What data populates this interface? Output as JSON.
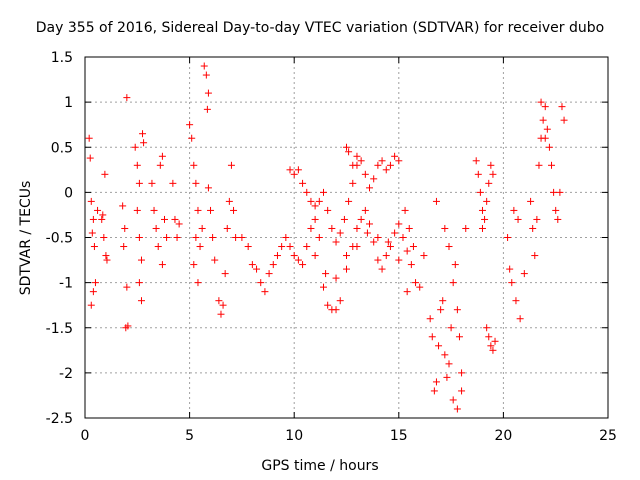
{
  "chart_data": {
    "type": "scatter",
    "title": "Day 355 of 2016, Sidereal Day-to-day VTEC variation (SDTVAR) for receiver dubo",
    "xlabel": "GPS time / hours",
    "ylabel": "SDTVAR / TECUs",
    "xlim": [
      0,
      25
    ],
    "ylim": [
      -2.5,
      1.5
    ],
    "xticks": [
      "0",
      "5",
      "10",
      "15",
      "20",
      "25"
    ],
    "yticks": [
      "1.5",
      "1",
      "0.5",
      "0",
      "-0.5",
      "-1",
      "-1.5",
      "-2",
      "-2.5"
    ],
    "grid": true,
    "marker": "+",
    "color": "#ff0000",
    "series": [
      {
        "name": "SDTVAR",
        "points": [
          [
            0.2,
            0.6
          ],
          [
            0.25,
            0.38
          ],
          [
            0.3,
            -0.1
          ],
          [
            0.35,
            -0.45
          ],
          [
            0.4,
            -0.3
          ],
          [
            0.45,
            -0.6
          ],
          [
            0.3,
            -1.25
          ],
          [
            0.4,
            -1.1
          ],
          [
            0.5,
            -1.0
          ],
          [
            0.6,
            -0.2
          ],
          [
            0.8,
            -0.3
          ],
          [
            0.9,
            -0.5
          ],
          [
            1.0,
            -0.7
          ],
          [
            0.85,
            -0.25
          ],
          [
            0.95,
            0.2
          ],
          [
            1.05,
            -0.75
          ],
          [
            1.8,
            -0.15
          ],
          [
            1.9,
            -0.4
          ],
          [
            1.85,
            -0.6
          ],
          [
            2.0,
            -1.05
          ],
          [
            1.95,
            -1.5
          ],
          [
            2.05,
            -1.48
          ],
          [
            2.0,
            1.05
          ],
          [
            2.4,
            0.5
          ],
          [
            2.5,
            0.3
          ],
          [
            2.6,
            0.1
          ],
          [
            2.5,
            -0.2
          ],
          [
            2.6,
            -0.5
          ],
          [
            2.7,
            -0.75
          ],
          [
            2.6,
            -1.0
          ],
          [
            2.7,
            -1.2
          ],
          [
            2.75,
            0.65
          ],
          [
            2.8,
            0.55
          ],
          [
            3.2,
            0.1
          ],
          [
            3.3,
            -0.2
          ],
          [
            3.4,
            -0.4
          ],
          [
            3.5,
            -0.6
          ],
          [
            3.6,
            0.3
          ],
          [
            3.7,
            0.4
          ],
          [
            3.8,
            -0.3
          ],
          [
            3.9,
            -0.5
          ],
          [
            3.7,
            -0.8
          ],
          [
            4.2,
            0.1
          ],
          [
            4.3,
            -0.3
          ],
          [
            4.4,
            -0.5
          ],
          [
            4.5,
            -0.35
          ],
          [
            5.0,
            0.75
          ],
          [
            5.1,
            0.6
          ],
          [
            5.2,
            0.3
          ],
          [
            5.3,
            0.1
          ],
          [
            5.4,
            -0.2
          ],
          [
            5.3,
            -0.5
          ],
          [
            5.2,
            -0.8
          ],
          [
            5.4,
            -1.0
          ],
          [
            5.5,
            -0.6
          ],
          [
            5.6,
            -0.4
          ],
          [
            5.7,
            1.4
          ],
          [
            5.8,
            1.3
          ],
          [
            5.9,
            1.1
          ],
          [
            5.85,
            0.92
          ],
          [
            5.9,
            0.05
          ],
          [
            6.0,
            -0.2
          ],
          [
            6.1,
            -0.5
          ],
          [
            6.2,
            -0.75
          ],
          [
            6.4,
            -1.2
          ],
          [
            6.5,
            -1.35
          ],
          [
            6.6,
            -1.25
          ],
          [
            6.7,
            -0.9
          ],
          [
            6.8,
            -0.4
          ],
          [
            6.9,
            -0.1
          ],
          [
            7.0,
            0.3
          ],
          [
            7.1,
            -0.2
          ],
          [
            7.2,
            -0.5
          ],
          [
            7.5,
            -0.5
          ],
          [
            7.8,
            -0.6
          ],
          [
            8.0,
            -0.8
          ],
          [
            8.2,
            -0.85
          ],
          [
            8.4,
            -1.0
          ],
          [
            8.6,
            -1.1
          ],
          [
            8.8,
            -0.9
          ],
          [
            9.0,
            -0.8
          ],
          [
            9.2,
            -0.7
          ],
          [
            9.4,
            -0.6
          ],
          [
            9.6,
            -0.5
          ],
          [
            9.8,
            -0.6
          ],
          [
            10.0,
            -0.7
          ],
          [
            10.2,
            -0.75
          ],
          [
            10.4,
            -0.8
          ],
          [
            10.6,
            -0.6
          ],
          [
            10.8,
            -0.4
          ],
          [
            11.0,
            -0.3
          ],
          [
            11.2,
            -0.5
          ],
          [
            11.4,
            -1.05
          ],
          [
            11.6,
            -1.25
          ],
          [
            11.8,
            -1.3
          ],
          [
            12.0,
            -1.3
          ],
          [
            12.2,
            -1.2
          ],
          [
            9.8,
            0.25
          ],
          [
            10.0,
            0.2
          ],
          [
            10.2,
            0.25
          ],
          [
            10.4,
            0.1
          ],
          [
            10.6,
            0.0
          ],
          [
            10.8,
            -0.1
          ],
          [
            11.0,
            -0.15
          ],
          [
            11.2,
            -0.1
          ],
          [
            11.4,
            0.0
          ],
          [
            11.6,
            -0.2
          ],
          [
            11.8,
            -0.4
          ],
          [
            12.0,
            -0.55
          ],
          [
            12.2,
            -0.45
          ],
          [
            12.4,
            -0.3
          ],
          [
            12.6,
            -0.1
          ],
          [
            12.8,
            0.1
          ],
          [
            13.0,
            0.3
          ],
          [
            12.5,
            0.5
          ],
          [
            12.6,
            0.45
          ],
          [
            12.8,
            0.3
          ],
          [
            13.0,
            0.4
          ],
          [
            13.2,
            0.35
          ],
          [
            13.4,
            0.2
          ],
          [
            13.6,
            0.05
          ],
          [
            13.8,
            0.15
          ],
          [
            14.0,
            0.3
          ],
          [
            14.2,
            0.35
          ],
          [
            14.4,
            0.25
          ],
          [
            14.6,
            0.3
          ],
          [
            14.8,
            0.4
          ],
          [
            15.0,
            0.35
          ],
          [
            12.5,
            -0.7
          ],
          [
            12.8,
            -0.6
          ],
          [
            13.0,
            -0.4
          ],
          [
            13.2,
            -0.3
          ],
          [
            13.4,
            -0.2
          ],
          [
            13.6,
            -0.35
          ],
          [
            13.8,
            -0.55
          ],
          [
            14.0,
            -0.75
          ],
          [
            14.2,
            -0.85
          ],
          [
            14.4,
            -0.7
          ],
          [
            14.6,
            -0.6
          ],
          [
            14.8,
            -0.45
          ],
          [
            15.0,
            -0.35
          ],
          [
            15.2,
            -0.5
          ],
          [
            15.4,
            -0.65
          ],
          [
            11.0,
            -0.7
          ],
          [
            11.5,
            -0.9
          ],
          [
            12.0,
            -0.95
          ],
          [
            12.5,
            -0.85
          ],
          [
            13.0,
            -0.6
          ],
          [
            13.5,
            -0.45
          ],
          [
            14.0,
            -0.5
          ],
          [
            14.5,
            -0.55
          ],
          [
            15.0,
            -0.75
          ],
          [
            15.3,
            -0.2
          ],
          [
            15.5,
            -0.4
          ],
          [
            15.6,
            -0.8
          ],
          [
            15.8,
            -1.0
          ],
          [
            16.0,
            -1.05
          ],
          [
            16.2,
            -0.7
          ],
          [
            15.4,
            -1.1
          ],
          [
            15.7,
            -0.6
          ],
          [
            16.5,
            -1.4
          ],
          [
            16.6,
            -1.6
          ],
          [
            16.7,
            -2.2
          ],
          [
            16.8,
            -2.1
          ],
          [
            16.9,
            -1.7
          ],
          [
            17.0,
            -1.3
          ],
          [
            17.1,
            -1.2
          ],
          [
            17.2,
            -1.8
          ],
          [
            17.3,
            -2.05
          ],
          [
            17.4,
            -1.9
          ],
          [
            17.5,
            -1.5
          ],
          [
            17.6,
            -1.0
          ],
          [
            17.7,
            -0.8
          ],
          [
            17.8,
            -1.3
          ],
          [
            17.9,
            -1.6
          ],
          [
            18.0,
            -2.0
          ],
          [
            17.6,
            -2.3
          ],
          [
            17.8,
            -2.4
          ],
          [
            18.0,
            -2.2
          ],
          [
            17.2,
            -0.4
          ],
          [
            17.4,
            -0.6
          ],
          [
            16.8,
            -0.1
          ],
          [
            18.2,
            -0.4
          ],
          [
            18.7,
            0.35
          ],
          [
            18.8,
            0.2
          ],
          [
            18.9,
            0.0
          ],
          [
            19.0,
            -0.2
          ],
          [
            19.1,
            -0.3
          ],
          [
            19.2,
            -0.1
          ],
          [
            19.3,
            0.1
          ],
          [
            19.4,
            0.3
          ],
          [
            19.5,
            0.2
          ],
          [
            19.0,
            -0.4
          ],
          [
            19.2,
            -1.5
          ],
          [
            19.3,
            -1.6
          ],
          [
            19.4,
            -1.7
          ],
          [
            19.5,
            -1.75
          ],
          [
            19.6,
            -1.65
          ],
          [
            20.2,
            -0.5
          ],
          [
            20.3,
            -0.85
          ],
          [
            20.4,
            -1.0
          ],
          [
            20.6,
            -1.2
          ],
          [
            20.8,
            -1.4
          ],
          [
            21.0,
            -0.9
          ],
          [
            20.5,
            -0.2
          ],
          [
            20.7,
            -0.3
          ],
          [
            21.3,
            -0.1
          ],
          [
            21.4,
            -0.4
          ],
          [
            21.5,
            -0.7
          ],
          [
            21.6,
            -0.3
          ],
          [
            21.7,
            0.3
          ],
          [
            21.8,
            0.6
          ],
          [
            21.9,
            0.8
          ],
          [
            22.0,
            0.95
          ],
          [
            22.1,
            0.7
          ],
          [
            22.2,
            0.5
          ],
          [
            22.3,
            0.3
          ],
          [
            22.4,
            0.0
          ],
          [
            22.5,
            -0.2
          ],
          [
            22.6,
            -0.3
          ],
          [
            22.7,
            0.0
          ],
          [
            22.8,
            0.95
          ],
          [
            22.9,
            0.8
          ],
          [
            21.8,
            1.0
          ],
          [
            22.0,
            0.6
          ]
        ]
      }
    ]
  }
}
